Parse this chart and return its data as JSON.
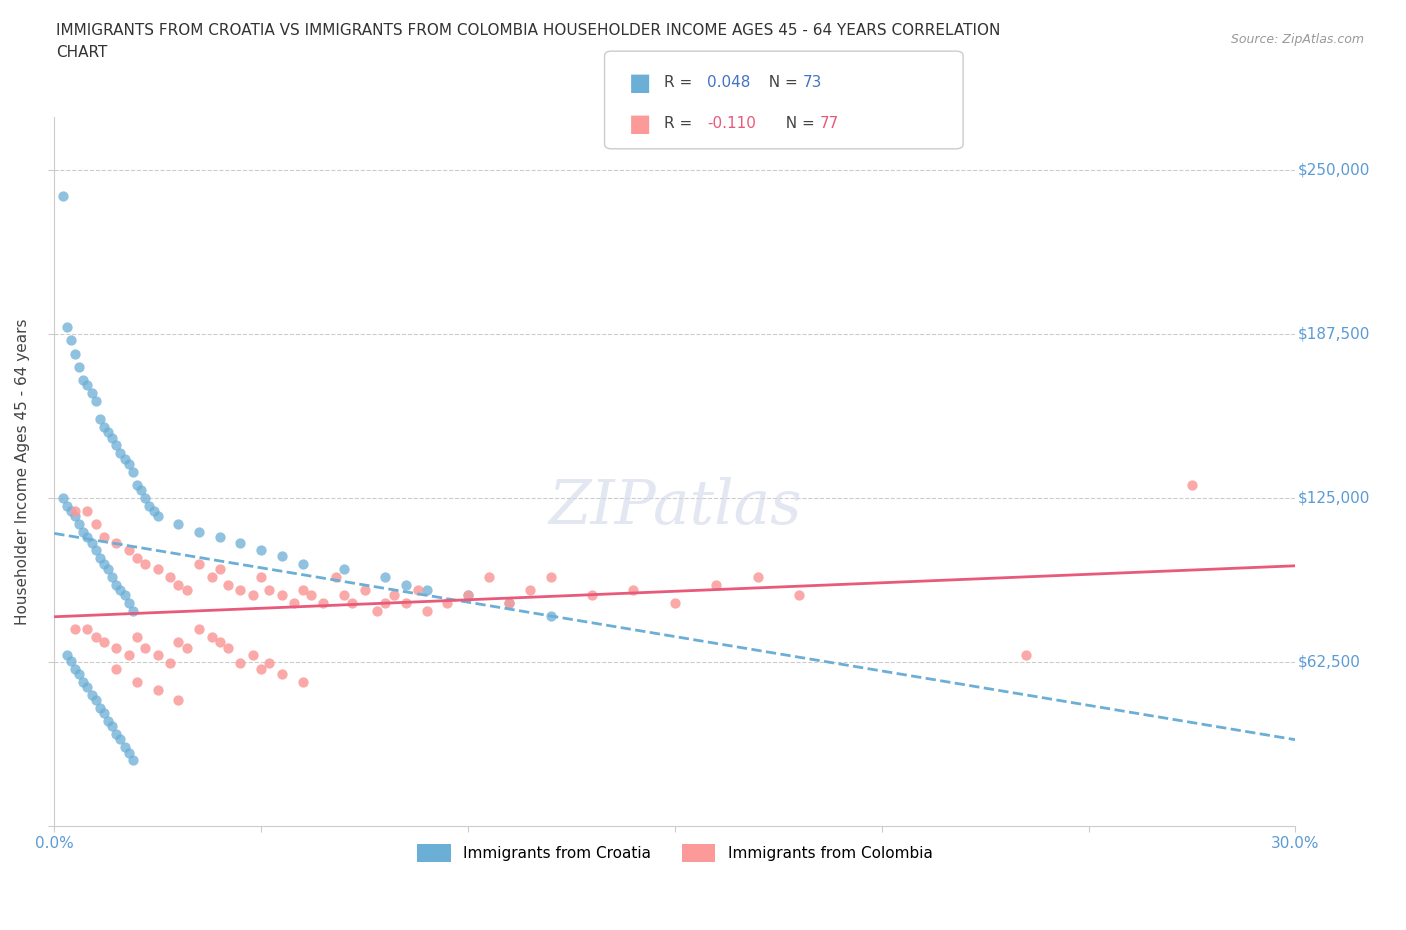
{
  "title_line1": "IMMIGRANTS FROM CROATIA VS IMMIGRANTS FROM COLOMBIA HOUSEHOLDER INCOME AGES 45 - 64 YEARS CORRELATION",
  "title_line2": "CHART",
  "source_text": "Source: ZipAtlas.com",
  "ylabel": "Householder Income Ages 45 - 64 years",
  "xlim": [
    0.0,
    0.3
  ],
  "ylim": [
    0,
    270000
  ],
  "yticks": [
    0,
    62500,
    125000,
    187500,
    250000
  ],
  "xticks": [
    0.0,
    0.05,
    0.1,
    0.15,
    0.2,
    0.25,
    0.3
  ],
  "croatia_color": "#6baed6",
  "colombia_color": "#fb9a99",
  "croatia_line_color": "#6baed6",
  "colombia_line_color": "#e8597a",
  "tick_color": "#5b9bd5",
  "watermark": "ZIPatlas",
  "watermark_color": "#d0d8e8",
  "croatia_x": [
    0.002,
    0.003,
    0.004,
    0.005,
    0.006,
    0.007,
    0.008,
    0.009,
    0.01,
    0.011,
    0.012,
    0.013,
    0.014,
    0.015,
    0.016,
    0.017,
    0.018,
    0.019,
    0.02,
    0.021,
    0.022,
    0.023,
    0.024,
    0.025,
    0.03,
    0.035,
    0.04,
    0.045,
    0.05,
    0.055,
    0.06,
    0.07,
    0.08,
    0.085,
    0.09,
    0.1,
    0.11,
    0.12,
    0.002,
    0.003,
    0.004,
    0.005,
    0.006,
    0.007,
    0.008,
    0.009,
    0.01,
    0.011,
    0.012,
    0.013,
    0.014,
    0.015,
    0.016,
    0.017,
    0.018,
    0.019,
    0.003,
    0.004,
    0.005,
    0.006,
    0.007,
    0.008,
    0.009,
    0.01,
    0.011,
    0.012,
    0.013,
    0.014,
    0.015,
    0.016,
    0.017,
    0.018,
    0.019
  ],
  "croatia_y": [
    240000,
    190000,
    185000,
    180000,
    175000,
    170000,
    168000,
    165000,
    162000,
    155000,
    152000,
    150000,
    148000,
    145000,
    142000,
    140000,
    138000,
    135000,
    130000,
    128000,
    125000,
    122000,
    120000,
    118000,
    115000,
    112000,
    110000,
    108000,
    105000,
    103000,
    100000,
    98000,
    95000,
    92000,
    90000,
    88000,
    85000,
    80000,
    125000,
    122000,
    120000,
    118000,
    115000,
    112000,
    110000,
    108000,
    105000,
    102000,
    100000,
    98000,
    95000,
    92000,
    90000,
    88000,
    85000,
    82000,
    65000,
    63000,
    60000,
    58000,
    55000,
    53000,
    50000,
    48000,
    45000,
    43000,
    40000,
    38000,
    35000,
    33000,
    30000,
    28000,
    25000
  ],
  "colombia_x": [
    0.005,
    0.008,
    0.01,
    0.012,
    0.015,
    0.018,
    0.02,
    0.022,
    0.025,
    0.028,
    0.03,
    0.032,
    0.035,
    0.038,
    0.04,
    0.042,
    0.045,
    0.048,
    0.05,
    0.052,
    0.055,
    0.058,
    0.06,
    0.062,
    0.065,
    0.068,
    0.07,
    0.072,
    0.075,
    0.078,
    0.08,
    0.082,
    0.085,
    0.088,
    0.09,
    0.095,
    0.1,
    0.105,
    0.11,
    0.115,
    0.12,
    0.13,
    0.14,
    0.15,
    0.16,
    0.17,
    0.18,
    0.005,
    0.008,
    0.01,
    0.012,
    0.015,
    0.018,
    0.02,
    0.022,
    0.025,
    0.028,
    0.03,
    0.032,
    0.035,
    0.038,
    0.04,
    0.042,
    0.045,
    0.048,
    0.05,
    0.052,
    0.055,
    0.06,
    0.015,
    0.02,
    0.025,
    0.03,
    0.275,
    0.235
  ],
  "colombia_y": [
    120000,
    120000,
    115000,
    110000,
    108000,
    105000,
    102000,
    100000,
    98000,
    95000,
    92000,
    90000,
    100000,
    95000,
    98000,
    92000,
    90000,
    88000,
    95000,
    90000,
    88000,
    85000,
    90000,
    88000,
    85000,
    95000,
    88000,
    85000,
    90000,
    82000,
    85000,
    88000,
    85000,
    90000,
    82000,
    85000,
    88000,
    95000,
    85000,
    90000,
    95000,
    88000,
    90000,
    85000,
    92000,
    95000,
    88000,
    75000,
    75000,
    72000,
    70000,
    68000,
    65000,
    72000,
    68000,
    65000,
    62000,
    70000,
    68000,
    75000,
    72000,
    70000,
    68000,
    62000,
    65000,
    60000,
    62000,
    58000,
    55000,
    60000,
    55000,
    52000,
    48000,
    130000,
    65000
  ]
}
